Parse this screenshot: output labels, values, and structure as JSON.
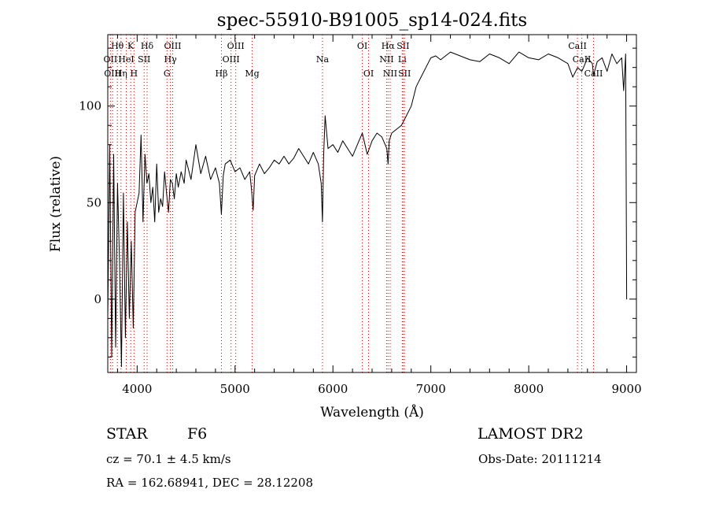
{
  "chart_data": {
    "type": "line",
    "title": "spec-55910-B91005_sp14-024.fits",
    "xlabel": "Wavelength (Å)",
    "ylabel": "Flux (relative)",
    "xlim": [
      3700,
      9100
    ],
    "ylim": [
      -38,
      137
    ],
    "xticks": [
      4000,
      5000,
      6000,
      7000,
      8000,
      9000
    ],
    "yticks": [
      0,
      50,
      100
    ],
    "grid": false,
    "line_color": "#000000",
    "marker_color": "#cc0000",
    "series": [
      {
        "values_x": [
          3700,
          3720,
          3740,
          3760,
          3780,
          3800,
          3820,
          3840,
          3860,
          3880,
          3900,
          3920,
          3940,
          3960,
          3980,
          4000,
          4020,
          4040,
          4060,
          4080,
          4100,
          4120,
          4140,
          4160,
          4180,
          4200,
          4220,
          4240,
          4260,
          4280,
          4300,
          4320,
          4340,
          4360,
          4380,
          4400,
          4420,
          4450,
          4480,
          4500,
          4550,
          4600,
          4650,
          4700,
          4750,
          4800,
          4840,
          4860,
          4880,
          4900,
          4950,
          5000,
          5050,
          5100,
          5150,
          5170,
          5185,
          5200,
          5250,
          5300,
          5350,
          5400,
          5450,
          5500,
          5550,
          5600,
          5650,
          5700,
          5750,
          5800,
          5850,
          5880,
          5893,
          5905,
          5920,
          5950,
          6000,
          6050,
          6100,
          6150,
          6200,
          6250,
          6300,
          6350,
          6400,
          6450,
          6500,
          6550,
          6563,
          6575,
          6600,
          6650,
          6700,
          6750,
          6800,
          6850,
          6900,
          6950,
          7000,
          7050,
          7100,
          7150,
          7200,
          7300,
          7400,
          7500,
          7600,
          7700,
          7800,
          7900,
          8000,
          8100,
          8200,
          8300,
          8400,
          8450,
          8500,
          8542,
          8560,
          8600,
          8650,
          8662,
          8700,
          8750,
          8800,
          8850,
          8900,
          8950,
          8970,
          8990,
          9000,
          9005
        ],
        "values_y": [
          -10,
          80,
          -30,
          75,
          -25,
          60,
          20,
          -35,
          55,
          -20,
          40,
          -10,
          30,
          -15,
          45,
          50,
          55,
          85,
          40,
          75,
          60,
          65,
          50,
          58,
          40,
          70,
          45,
          52,
          48,
          66,
          55,
          45,
          62,
          60,
          52,
          65,
          58,
          66,
          60,
          72,
          62,
          80,
          65,
          74,
          62,
          68,
          60,
          44,
          64,
          70,
          72,
          66,
          68,
          62,
          66,
          56,
          46,
          64,
          70,
          65,
          68,
          72,
          70,
          74,
          70,
          73,
          78,
          74,
          70,
          76,
          70,
          60,
          40,
          74,
          95,
          78,
          80,
          76,
          82,
          78,
          74,
          80,
          86,
          75,
          82,
          86,
          84,
          78,
          70,
          82,
          86,
          88,
          90,
          95,
          100,
          110,
          115,
          120,
          125,
          126,
          124,
          126,
          128,
          126,
          124,
          123,
          127,
          125,
          122,
          128,
          125,
          124,
          127,
          125,
          122,
          115,
          120,
          118,
          120,
          125,
          122,
          116,
          123,
          125,
          118,
          127,
          122,
          125,
          108,
          127,
          0,
          0
        ]
      }
    ],
    "line_markers": [
      {
        "label": "Hθ",
        "wl": 3798,
        "row": 1
      },
      {
        "label": "K",
        "wl": 3934,
        "row": 1
      },
      {
        "label": "Hδ",
        "wl": 4102,
        "row": 1
      },
      {
        "label": "OIII",
        "wl": 4363,
        "row": 1
      },
      {
        "label": "OIII",
        "wl": 5007,
        "row": 1
      },
      {
        "label": "OI",
        "wl": 6300,
        "row": 1
      },
      {
        "label": "Hα",
        "wl": 6563,
        "row": 1
      },
      {
        "label": "SII",
        "wl": 6716,
        "row": 1
      },
      {
        "label": "CaII",
        "wl": 8498,
        "row": 1
      },
      {
        "label": "OII",
        "wl": 3727,
        "row": 2
      },
      {
        "label": "HeI",
        "wl": 3889,
        "row": 2
      },
      {
        "label": "SII",
        "wl": 4072,
        "row": 2
      },
      {
        "label": "Hγ",
        "wl": 4340,
        "row": 2
      },
      {
        "label": "OIII",
        "wl": 4959,
        "row": 2
      },
      {
        "label": "Na",
        "wl": 5893,
        "row": 2
      },
      {
        "label": "NII",
        "wl": 6548,
        "row": 2
      },
      {
        "label": "Li",
        "wl": 6708,
        "row": 2
      },
      {
        "label": "CaII",
        "wl": 8542,
        "row": 2
      },
      {
        "label": "OIII",
        "wl": 3750,
        "row": 3
      },
      {
        "label": "Hη",
        "wl": 3835,
        "row": 3
      },
      {
        "label": "H",
        "wl": 3968,
        "row": 3
      },
      {
        "label": "G",
        "wl": 4305,
        "row": 3
      },
      {
        "label": "Hβ",
        "wl": 4861,
        "row": 3
      },
      {
        "label": "Mg",
        "wl": 5175,
        "row": 3
      },
      {
        "label": "OI",
        "wl": 6364,
        "row": 3
      },
      {
        "label": "NII",
        "wl": 6584,
        "row": 3
      },
      {
        "label": "SII",
        "wl": 6731,
        "row": 3
      },
      {
        "label": "CaII",
        "wl": 8662,
        "row": 3
      }
    ]
  },
  "info": {
    "object_type": "STAR",
    "subclass": "F6",
    "survey": "LAMOST DR2",
    "cz_line": "cz = 70.1 ± 4.5 km/s",
    "obs_date_line": "Obs-Date: 20111214",
    "coords_line": "RA = 162.68941, DEC =  28.12208"
  }
}
